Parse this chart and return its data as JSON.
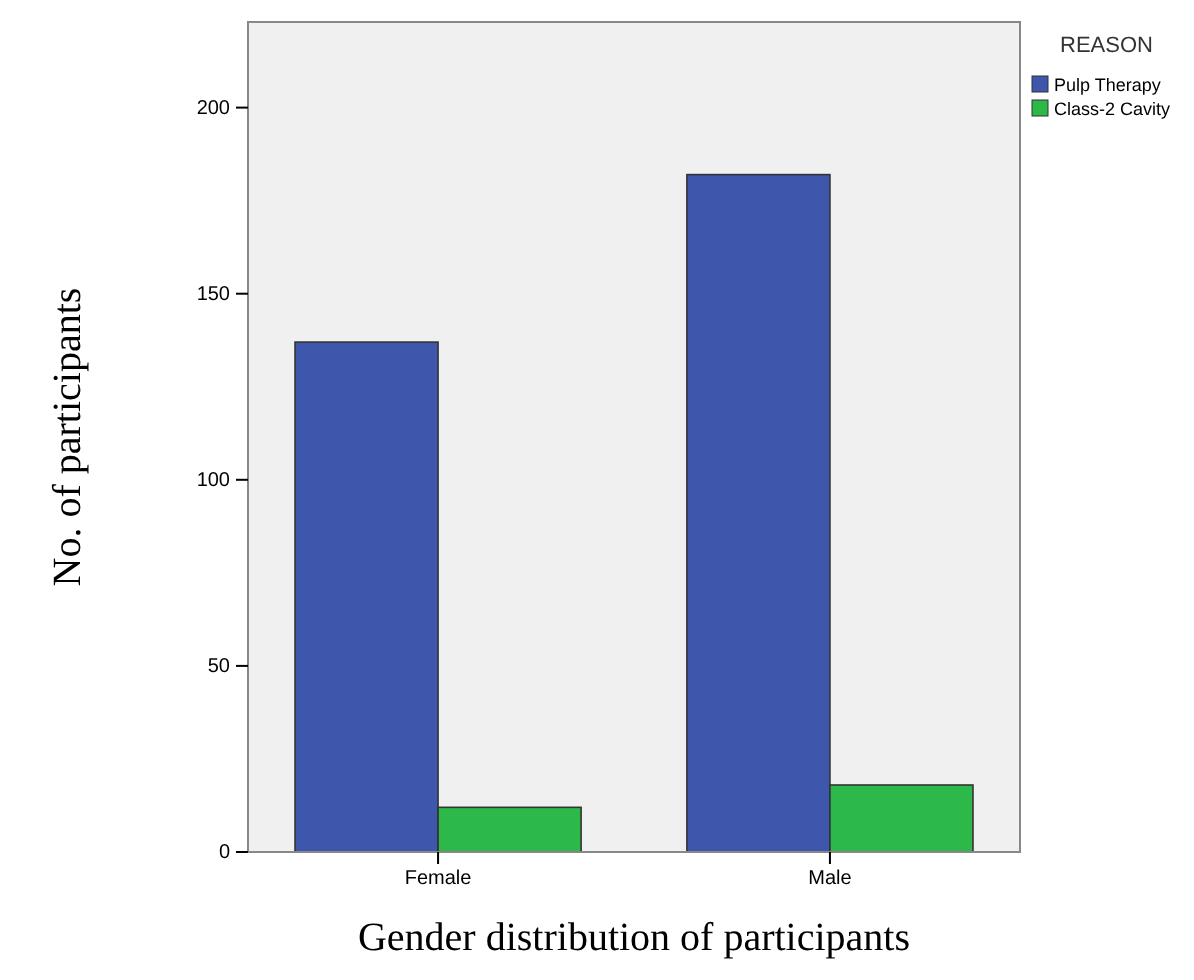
{
  "chart_data": {
    "type": "bar",
    "xlabel": "Gender distribution of participants",
    "ylabel": "No. of participants",
    "legend_title": "REASON",
    "categories": [
      "Female",
      "Male"
    ],
    "series": [
      {
        "name": "Pulp Therapy",
        "color": "#3e56ab",
        "values": [
          137,
          182
        ]
      },
      {
        "name": "Class-2 Cavity",
        "color": "#2db84a",
        "values": [
          12,
          18
        ]
      }
    ],
    "ylim": [
      0,
      223
    ],
    "yticks": [
      0,
      50,
      100,
      150,
      200
    ],
    "grid": false,
    "legend": "top right"
  }
}
